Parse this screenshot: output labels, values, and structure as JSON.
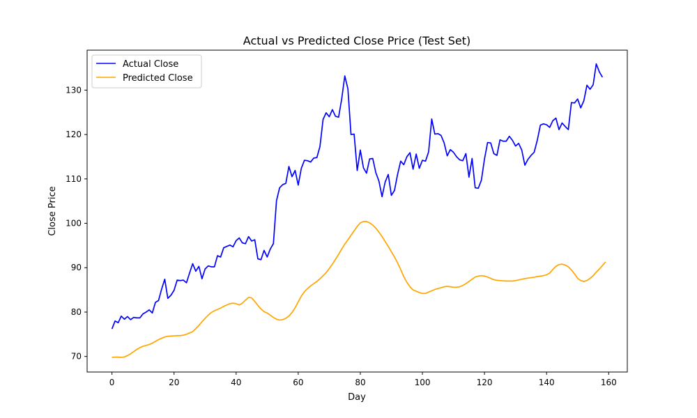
{
  "chart_data": {
    "type": "line",
    "title": "Actual vs Predicted Close Price (Test Set)",
    "xlabel": "Day",
    "ylabel": "Close Price",
    "xlim": [
      -8,
      166
    ],
    "ylim": [
      66.5,
      139
    ],
    "xticks": [
      0,
      20,
      40,
      60,
      80,
      100,
      120,
      140,
      160
    ],
    "yticks": [
      70,
      80,
      90,
      100,
      110,
      120,
      130
    ],
    "grid": false,
    "legend_position": "top-left",
    "series": [
      {
        "name": "Actual Close",
        "color": "#0000ff",
        "x0": 0,
        "values": [
          76.2,
          78.0,
          77.6,
          79.1,
          78.4,
          79.0,
          78.3,
          78.8,
          78.7,
          78.7,
          79.6,
          80.0,
          80.5,
          79.8,
          82.2,
          82.6,
          85.2,
          87.4,
          83.1,
          83.8,
          84.9,
          87.2,
          87.1,
          87.2,
          86.6,
          88.8,
          90.9,
          89.2,
          90.3,
          87.5,
          89.7,
          90.4,
          90.2,
          90.2,
          92.7,
          92.4,
          94.5,
          94.8,
          95.1,
          94.7,
          96.1,
          96.7,
          95.6,
          95.4,
          97.0,
          96.0,
          96.3,
          92.0,
          91.8,
          93.9,
          92.4,
          94.2,
          95.4,
          105.1,
          108.0,
          108.7,
          109.0,
          112.8,
          110.5,
          111.9,
          108.6,
          112.4,
          114.2,
          114.1,
          113.8,
          114.7,
          114.8,
          117.3,
          123.4,
          124.9,
          124.0,
          125.6,
          124.1,
          123.9,
          128.0,
          133.2,
          130.3,
          120.0,
          120.1,
          111.9,
          116.5,
          112.5,
          111.3,
          114.5,
          114.6,
          111.4,
          109.5,
          106.0,
          109.3,
          111.0,
          106.3,
          107.4,
          111.0,
          114.0,
          113.2,
          115.0,
          115.9,
          112.2,
          115.6,
          112.4,
          114.2,
          114.0,
          116.1,
          123.5,
          120.1,
          120.2,
          119.8,
          118.1,
          115.2,
          116.6,
          116.0,
          115.0,
          114.3,
          114.1,
          115.7,
          110.4,
          114.6,
          108.0,
          107.9,
          109.7,
          114.5,
          118.2,
          118.1,
          115.7,
          115.3,
          118.8,
          118.5,
          118.5,
          119.6,
          118.7,
          117.4,
          118.0,
          116.5,
          113.1,
          114.4,
          115.3,
          116.0,
          118.7,
          122.1,
          122.4,
          122.2,
          121.6,
          123.1,
          123.7,
          121.1,
          122.6,
          121.8,
          121.1,
          127.2,
          127.1,
          128.0,
          126.0,
          127.6,
          131.1,
          130.2,
          131.2,
          135.9,
          134.1,
          132.9
        ]
      },
      {
        "name": "Predicted Close",
        "color": "#ffa500",
        "x0": 0,
        "values": [
          69.8,
          69.85,
          69.85,
          69.8,
          69.9,
          70.2,
          70.6,
          71.1,
          71.6,
          72.0,
          72.3,
          72.5,
          72.7,
          73.0,
          73.4,
          73.8,
          74.1,
          74.4,
          74.55,
          74.6,
          74.65,
          74.7,
          74.7,
          74.8,
          75.0,
          75.3,
          75.6,
          76.3,
          77.0,
          77.8,
          78.6,
          79.3,
          79.9,
          80.3,
          80.6,
          80.9,
          81.3,
          81.6,
          81.9,
          82.0,
          81.9,
          81.6,
          82.0,
          82.7,
          83.3,
          83.2,
          82.4,
          81.5,
          80.7,
          80.1,
          79.8,
          79.3,
          78.8,
          78.4,
          78.2,
          78.3,
          78.6,
          79.1,
          79.9,
          81.0,
          82.3,
          83.6,
          84.6,
          85.3,
          85.9,
          86.4,
          86.9,
          87.5,
          88.2,
          88.9,
          89.8,
          90.8,
          91.9,
          93.0,
          94.2,
          95.3,
          96.3,
          97.3,
          98.3,
          99.3,
          100.1,
          100.4,
          100.4,
          100.1,
          99.6,
          98.9,
          98.0,
          97.0,
          95.9,
          94.8,
          93.6,
          92.4,
          91.1,
          89.6,
          88.0,
          86.7,
          85.7,
          85.0,
          84.7,
          84.4,
          84.2,
          84.2,
          84.5,
          84.8,
          85.1,
          85.3,
          85.5,
          85.7,
          85.8,
          85.7,
          85.6,
          85.6,
          85.7,
          86.0,
          86.4,
          86.9,
          87.4,
          87.9,
          88.1,
          88.2,
          88.1,
          87.9,
          87.6,
          87.3,
          87.15,
          87.1,
          87.05,
          87.0,
          87.0,
          87.0,
          87.1,
          87.25,
          87.4,
          87.55,
          87.65,
          87.75,
          87.85,
          88.0,
          88.1,
          88.2,
          88.4,
          88.8,
          89.6,
          90.3,
          90.7,
          90.8,
          90.6,
          90.2,
          89.5,
          88.6,
          87.6,
          87.1,
          86.9,
          87.1,
          87.6,
          88.2,
          89.0,
          89.7,
          90.5,
          91.3
        ]
      }
    ]
  }
}
